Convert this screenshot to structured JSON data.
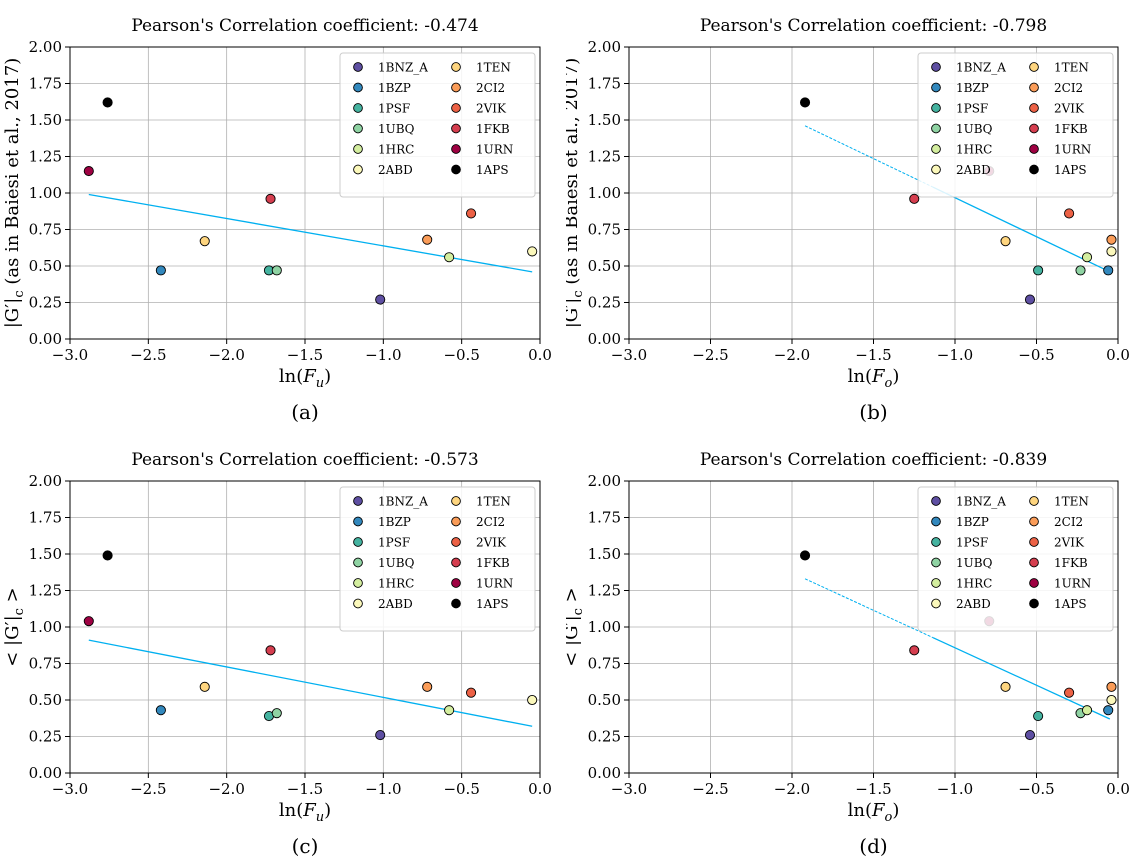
{
  "chart_data": [
    {
      "type": "scatter",
      "panel": "a",
      "title": "Pearson's Correlation coefficient: -0.474",
      "xlabel": "ln(F_u)",
      "xlabel_base": "ln(",
      "xlabel_var": "F",
      "xlabel_sub": "u",
      "xlabel_close": ")",
      "ylabel": "|G′|_c (as in Baiesi et al., 2017)",
      "ylabel_pre": "|G′|",
      "ylabel_sub": "c",
      "ylabel_post": " (as in Baiesi et al., 2017)",
      "caption": "(a)",
      "xlim": [
        -3.0,
        0.0
      ],
      "ylim": [
        0.0,
        2.0
      ],
      "x_ticks": [
        "−3.0",
        "−2.5",
        "−2.0",
        "−1.5",
        "−1.0",
        "−0.5",
        "0.0"
      ],
      "y_ticks": [
        "0.00",
        "0.25",
        "0.50",
        "0.75",
        "1.00",
        "1.25",
        "1.50",
        "1.75",
        "2.00"
      ],
      "grid": true,
      "legend_position": "top-right",
      "points": [
        {
          "name": "1BNZ_A",
          "x": -1.02,
          "y": 0.27
        },
        {
          "name": "1BZP",
          "x": -2.42,
          "y": 0.47
        },
        {
          "name": "1PSF",
          "x": -1.73,
          "y": 0.47
        },
        {
          "name": "1UBQ",
          "x": -1.68,
          "y": 0.47
        },
        {
          "name": "1HRC",
          "x": -0.58,
          "y": 0.56
        },
        {
          "name": "2ABD",
          "x": -0.05,
          "y": 0.6
        },
        {
          "name": "1TEN",
          "x": -2.14,
          "y": 0.67
        },
        {
          "name": "2CI2",
          "x": -0.72,
          "y": 0.68
        },
        {
          "name": "2VIK",
          "x": -0.44,
          "y": 0.86
        },
        {
          "name": "1FKB",
          "x": -1.72,
          "y": 0.96
        },
        {
          "name": "1URN",
          "x": -2.88,
          "y": 1.15
        },
        {
          "name": "1APS",
          "x": -2.76,
          "y": 1.62
        }
      ],
      "fit_line": {
        "x": [
          -2.88,
          -0.05
        ],
        "y": [
          0.99,
          0.46
        ],
        "style": "solid"
      }
    },
    {
      "type": "scatter",
      "panel": "b",
      "title": "Pearson's Correlation coefficient: -0.798",
      "xlabel": "ln(F_o)",
      "xlabel_base": "ln(",
      "xlabel_var": "F",
      "xlabel_sub": "o",
      "xlabel_close": ")",
      "ylabel": "|G′|_c (as in Baiesi et al., 2017)",
      "ylabel_pre": "|G′|",
      "ylabel_sub": "c",
      "ylabel_post": " (as in Baiesi et al., 2017)",
      "caption": "(b)",
      "xlim": [
        -3.0,
        0.0
      ],
      "ylim": [
        0.0,
        2.0
      ],
      "x_ticks": [
        "−3.0",
        "−2.5",
        "−2.0",
        "−1.5",
        "−1.0",
        "−0.5",
        "0.0"
      ],
      "y_ticks": [
        "0.00",
        "0.25",
        "0.50",
        "0.75",
        "1.00",
        "1.25",
        "1.50",
        "1.75",
        "2.00"
      ],
      "grid": true,
      "legend_position": "top-right",
      "points": [
        {
          "name": "1BNZ_A",
          "x": -0.54,
          "y": 0.27
        },
        {
          "name": "1BZP",
          "x": -0.06,
          "y": 0.47
        },
        {
          "name": "1PSF",
          "x": -0.49,
          "y": 0.47
        },
        {
          "name": "1UBQ",
          "x": -0.23,
          "y": 0.47
        },
        {
          "name": "1HRC",
          "x": -0.19,
          "y": 0.56
        },
        {
          "name": "2ABD",
          "x": -0.04,
          "y": 0.6
        },
        {
          "name": "1TEN",
          "x": -0.69,
          "y": 0.67
        },
        {
          "name": "2CI2",
          "x": -0.04,
          "y": 0.68
        },
        {
          "name": "2VIK",
          "x": -0.3,
          "y": 0.86
        },
        {
          "name": "1FKB",
          "x": -1.25,
          "y": 0.96
        },
        {
          "name": "1URN",
          "x": -0.79,
          "y": 1.15
        },
        {
          "name": "1APS",
          "x": -1.92,
          "y": 1.62
        }
      ],
      "fit_line": {
        "x": [
          -1.92,
          -0.05
        ],
        "y": [
          1.46,
          0.46
        ],
        "style": "dashed-solid"
      }
    },
    {
      "type": "scatter",
      "panel": "c",
      "title": "Pearson's Correlation coefficient: -0.573",
      "xlabel": "ln(F_u)",
      "xlabel_base": "ln(",
      "xlabel_var": "F",
      "xlabel_sub": "u",
      "xlabel_close": ")",
      "ylabel": "< |G′|_c >",
      "ylabel_pre": "< |G′|",
      "ylabel_sub": "c",
      "ylabel_post": " >",
      "caption": "(c)",
      "xlim": [
        -3.0,
        0.0
      ],
      "ylim": [
        0.0,
        2.0
      ],
      "x_ticks": [
        "−3.0",
        "−2.5",
        "−2.0",
        "−1.5",
        "−1.0",
        "−0.5",
        "0.0"
      ],
      "y_ticks": [
        "0.00",
        "0.25",
        "0.50",
        "0.75",
        "1.00",
        "1.25",
        "1.50",
        "1.75",
        "2.00"
      ],
      "grid": true,
      "legend_position": "top-right",
      "points": [
        {
          "name": "1BNZ_A",
          "x": -1.02,
          "y": 0.26
        },
        {
          "name": "1BZP",
          "x": -2.42,
          "y": 0.43
        },
        {
          "name": "1PSF",
          "x": -1.73,
          "y": 0.39
        },
        {
          "name": "1UBQ",
          "x": -1.68,
          "y": 0.41
        },
        {
          "name": "1HRC",
          "x": -0.58,
          "y": 0.43
        },
        {
          "name": "2ABD",
          "x": -0.05,
          "y": 0.5
        },
        {
          "name": "1TEN",
          "x": -2.14,
          "y": 0.59
        },
        {
          "name": "2CI2",
          "x": -0.72,
          "y": 0.59
        },
        {
          "name": "2VIK",
          "x": -0.44,
          "y": 0.55
        },
        {
          "name": "1FKB",
          "x": -1.72,
          "y": 0.84
        },
        {
          "name": "1URN",
          "x": -2.88,
          "y": 1.04
        },
        {
          "name": "1APS",
          "x": -2.76,
          "y": 1.49
        }
      ],
      "fit_line": {
        "x": [
          -2.88,
          -0.05
        ],
        "y": [
          0.91,
          0.32
        ],
        "style": "solid"
      }
    },
    {
      "type": "scatter",
      "panel": "d",
      "title": "Pearson's Correlation coefficient: -0.839",
      "xlabel": "ln(F_o)",
      "xlabel_base": "ln(",
      "xlabel_var": "F",
      "xlabel_sub": "o",
      "xlabel_close": ")",
      "ylabel": "< |G′|_c >",
      "ylabel_pre": "< |G′|",
      "ylabel_sub": "c",
      "ylabel_post": " >",
      "caption": "(d)",
      "xlim": [
        -3.0,
        0.0
      ],
      "ylim": [
        0.0,
        2.0
      ],
      "x_ticks": [
        "−3.0",
        "−2.5",
        "−2.0",
        "−1.5",
        "−1.0",
        "−0.5",
        "0.0"
      ],
      "y_ticks": [
        "0.00",
        "0.25",
        "0.50",
        "0.75",
        "1.00",
        "1.25",
        "1.50",
        "1.75",
        "2.00"
      ],
      "grid": true,
      "legend_position": "top-right",
      "points": [
        {
          "name": "1BNZ_A",
          "x": -0.54,
          "y": 0.26
        },
        {
          "name": "1BZP",
          "x": -0.06,
          "y": 0.43
        },
        {
          "name": "1PSF",
          "x": -0.49,
          "y": 0.39
        },
        {
          "name": "1UBQ",
          "x": -0.23,
          "y": 0.41
        },
        {
          "name": "1HRC",
          "x": -0.19,
          "y": 0.43
        },
        {
          "name": "2ABD",
          "x": -0.04,
          "y": 0.5
        },
        {
          "name": "1TEN",
          "x": -0.69,
          "y": 0.59
        },
        {
          "name": "2CI2",
          "x": -0.04,
          "y": 0.59
        },
        {
          "name": "2VIK",
          "x": -0.3,
          "y": 0.55
        },
        {
          "name": "1FKB",
          "x": -1.25,
          "y": 0.84
        },
        {
          "name": "1URN",
          "x": -0.79,
          "y": 1.04
        },
        {
          "name": "1APS",
          "x": -1.92,
          "y": 1.49
        }
      ],
      "fit_line": {
        "x": [
          -1.92,
          -0.05
        ],
        "y": [
          1.33,
          0.37
        ],
        "style": "dashed-solid"
      }
    }
  ],
  "legend": {
    "entries": [
      {
        "label": "1BNZ_A",
        "color": "#5e4fa2"
      },
      {
        "label": "1BZP",
        "color": "#3288bd"
      },
      {
        "label": "1PSF",
        "color": "#45b3a0"
      },
      {
        "label": "1UBQ",
        "color": "#8fd3a3"
      },
      {
        "label": "1HRC",
        "color": "#d4ee9f"
      },
      {
        "label": "2ABD",
        "color": "#fbf8bb"
      },
      {
        "label": "1TEN",
        "color": "#fed57f"
      },
      {
        "label": "2CI2",
        "color": "#fa9c58"
      },
      {
        "label": "2VIK",
        "color": "#ec6145"
      },
      {
        "label": "1FKB",
        "color": "#d53e4f"
      },
      {
        "label": "1URN",
        "color": "#9e0142"
      },
      {
        "label": "1APS",
        "color": "#000000"
      }
    ]
  },
  "colors": {
    "fit_line": "#00b0f0",
    "grid": "#b0b0b0",
    "axes": "#000000",
    "marker_edge": "#000000"
  }
}
